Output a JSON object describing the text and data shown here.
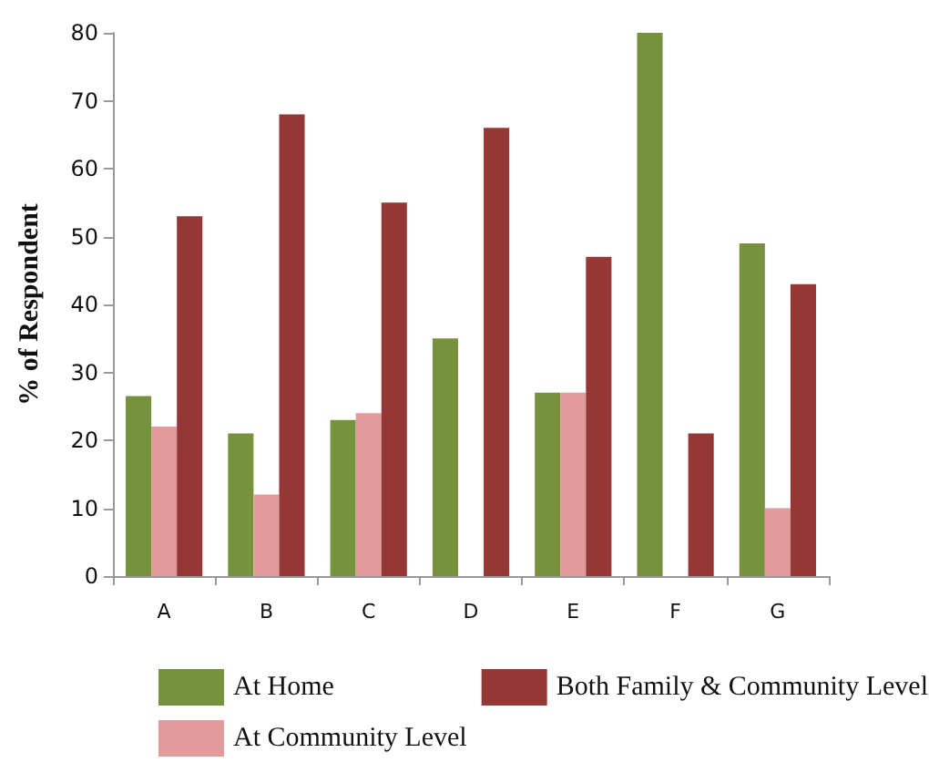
{
  "chart_data": {
    "type": "bar",
    "ylabel": "% of Respondent",
    "categories": [
      "A",
      "B",
      "C",
      "D",
      "E",
      "F",
      "G"
    ],
    "series": [
      {
        "name": "At Home",
        "color": "#76923c",
        "values": [
          26.5,
          21,
          23,
          35,
          27,
          80,
          49
        ]
      },
      {
        "name": "At Community Level",
        "color": "#e39a9a",
        "values": [
          22,
          12,
          24,
          0,
          27,
          0,
          10
        ]
      },
      {
        "name": "Both Family & Community Level",
        "color": "#953735",
        "values": [
          53,
          68,
          55,
          66,
          47,
          21,
          43
        ]
      }
    ],
    "ylim": [
      0,
      80
    ],
    "yticks": [
      0,
      10,
      20,
      30,
      40,
      50,
      60,
      70,
      80
    ],
    "grid": false,
    "legend": "bottom"
  }
}
